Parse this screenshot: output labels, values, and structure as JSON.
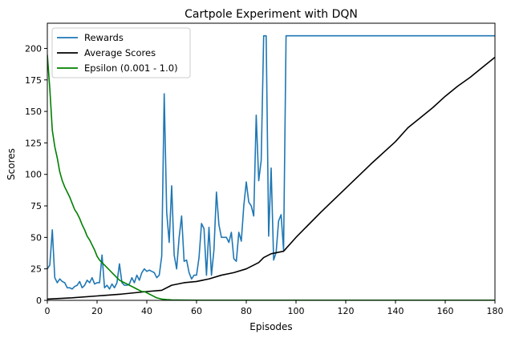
{
  "chart_data": {
    "type": "line",
    "title": "Cartpole Experiment with DQN",
    "xlabel": "Episodes",
    "ylabel": "Scores",
    "xlim": [
      0,
      180
    ],
    "ylim": [
      0,
      220
    ],
    "xticks": [
      0,
      20,
      40,
      60,
      80,
      100,
      120,
      140,
      160,
      180
    ],
    "yticks": [
      0,
      25,
      50,
      75,
      100,
      125,
      150,
      175,
      200
    ],
    "grid": false,
    "legend_position": "top-left",
    "series": [
      {
        "name": "Rewards",
        "color": "#1f77b4",
        "points": [
          [
            0,
            25
          ],
          [
            1,
            28
          ],
          [
            2,
            56
          ],
          [
            3,
            18
          ],
          [
            4,
            14
          ],
          [
            5,
            17
          ],
          [
            6,
            15
          ],
          [
            7,
            14
          ],
          [
            8,
            10
          ],
          [
            9,
            10
          ],
          [
            10,
            9
          ],
          [
            11,
            11
          ],
          [
            12,
            12
          ],
          [
            13,
            15
          ],
          [
            14,
            10
          ],
          [
            15,
            12
          ],
          [
            16,
            16
          ],
          [
            17,
            14
          ],
          [
            18,
            18
          ],
          [
            19,
            13
          ],
          [
            20,
            14
          ],
          [
            21,
            14
          ],
          [
            22,
            36
          ],
          [
            23,
            10
          ],
          [
            24,
            12
          ],
          [
            25,
            9
          ],
          [
            26,
            13
          ],
          [
            27,
            10
          ],
          [
            28,
            14
          ],
          [
            29,
            29
          ],
          [
            30,
            14
          ],
          [
            31,
            12
          ],
          [
            32,
            12
          ],
          [
            33,
            13
          ],
          [
            34,
            18
          ],
          [
            35,
            14
          ],
          [
            36,
            20
          ],
          [
            37,
            16
          ],
          [
            38,
            22
          ],
          [
            39,
            25
          ],
          [
            40,
            23
          ],
          [
            41,
            24
          ],
          [
            42,
            23
          ],
          [
            43,
            22
          ],
          [
            44,
            18
          ],
          [
            45,
            20
          ],
          [
            46,
            35
          ],
          [
            47,
            164
          ],
          [
            48,
            70
          ],
          [
            49,
            46
          ],
          [
            50,
            91
          ],
          [
            51,
            36
          ],
          [
            52,
            25
          ],
          [
            53,
            50
          ],
          [
            54,
            67
          ],
          [
            55,
            31
          ],
          [
            56,
            32
          ],
          [
            57,
            22
          ],
          [
            58,
            17
          ],
          [
            59,
            20
          ],
          [
            60,
            20
          ],
          [
            61,
            34
          ],
          [
            62,
            61
          ],
          [
            63,
            57
          ],
          [
            64,
            20
          ],
          [
            65,
            58
          ],
          [
            66,
            20
          ],
          [
            67,
            40
          ],
          [
            68,
            86
          ],
          [
            69,
            60
          ],
          [
            70,
            50
          ],
          [
            71,
            50
          ],
          [
            72,
            50
          ],
          [
            73,
            46
          ],
          [
            74,
            54
          ],
          [
            75,
            33
          ],
          [
            76,
            31
          ],
          [
            77,
            54
          ],
          [
            78,
            47
          ],
          [
            79,
            75
          ],
          [
            80,
            94
          ],
          [
            81,
            78
          ],
          [
            82,
            75
          ],
          [
            83,
            67
          ],
          [
            84,
            147
          ],
          [
            85,
            95
          ],
          [
            86,
            111
          ],
          [
            87,
            210
          ],
          [
            88,
            210
          ],
          [
            89,
            51
          ],
          [
            90,
            105
          ],
          [
            91,
            32
          ],
          [
            92,
            38
          ],
          [
            93,
            63
          ],
          [
            94,
            68
          ],
          [
            95,
            40
          ],
          [
            96,
            210
          ],
          [
            100,
            210
          ],
          [
            120,
            210
          ],
          [
            140,
            210
          ],
          [
            160,
            210
          ],
          [
            180,
            210
          ]
        ]
      },
      {
        "name": "Average Scores",
        "color": "#000000",
        "points": [
          [
            0,
            1
          ],
          [
            10,
            2
          ],
          [
            20,
            3.5
          ],
          [
            30,
            5
          ],
          [
            40,
            7
          ],
          [
            46,
            8
          ],
          [
            50,
            12
          ],
          [
            55,
            14
          ],
          [
            60,
            15
          ],
          [
            65,
            17
          ],
          [
            70,
            20
          ],
          [
            75,
            22
          ],
          [
            80,
            25
          ],
          [
            85,
            30
          ],
          [
            87,
            34
          ],
          [
            90,
            37
          ],
          [
            95,
            39
          ],
          [
            100,
            50
          ],
          [
            110,
            70
          ],
          [
            120,
            89
          ],
          [
            130,
            108
          ],
          [
            140,
            126
          ],
          [
            145,
            137
          ],
          [
            150,
            145
          ],
          [
            155,
            153
          ],
          [
            160,
            162
          ],
          [
            165,
            170
          ],
          [
            170,
            177
          ],
          [
            175,
            185
          ],
          [
            180,
            193
          ]
        ]
      },
      {
        "name": "Epsilon (0.001 - 1.0)",
        "color": "#008000",
        "points": [
          [
            0,
            195
          ],
          [
            1,
            168
          ],
          [
            2,
            135
          ],
          [
            3,
            122
          ],
          [
            4,
            113
          ],
          [
            5,
            102
          ],
          [
            6,
            95
          ],
          [
            7,
            90
          ],
          [
            8,
            86
          ],
          [
            9,
            82
          ],
          [
            10,
            77
          ],
          [
            11,
            72
          ],
          [
            12,
            69
          ],
          [
            13,
            65
          ],
          [
            14,
            60
          ],
          [
            15,
            56
          ],
          [
            16,
            51
          ],
          [
            17,
            48
          ],
          [
            18,
            44
          ],
          [
            19,
            40
          ],
          [
            20,
            35
          ],
          [
            21,
            32
          ],
          [
            22,
            30
          ],
          [
            23,
            28
          ],
          [
            24,
            26
          ],
          [
            25,
            24
          ],
          [
            26,
            22
          ],
          [
            27,
            20
          ],
          [
            28,
            18
          ],
          [
            29,
            16
          ],
          [
            30,
            15
          ],
          [
            31,
            14
          ],
          [
            32,
            13
          ],
          [
            33,
            12
          ],
          [
            34,
            11
          ],
          [
            35,
            10
          ],
          [
            36,
            9
          ],
          [
            37,
            8
          ],
          [
            38,
            7
          ],
          [
            39,
            7
          ],
          [
            40,
            6
          ],
          [
            41,
            5
          ],
          [
            42,
            4
          ],
          [
            43,
            3
          ],
          [
            44,
            2
          ],
          [
            45,
            1.5
          ],
          [
            46,
            1
          ],
          [
            48,
            0.6
          ],
          [
            50,
            0.4
          ],
          [
            55,
            0.2
          ],
          [
            60,
            0.1
          ],
          [
            80,
            0.1
          ],
          [
            100,
            0.1
          ],
          [
            120,
            0.1
          ],
          [
            140,
            0.1
          ],
          [
            160,
            0.1
          ],
          [
            180,
            0.1
          ]
        ]
      }
    ]
  }
}
